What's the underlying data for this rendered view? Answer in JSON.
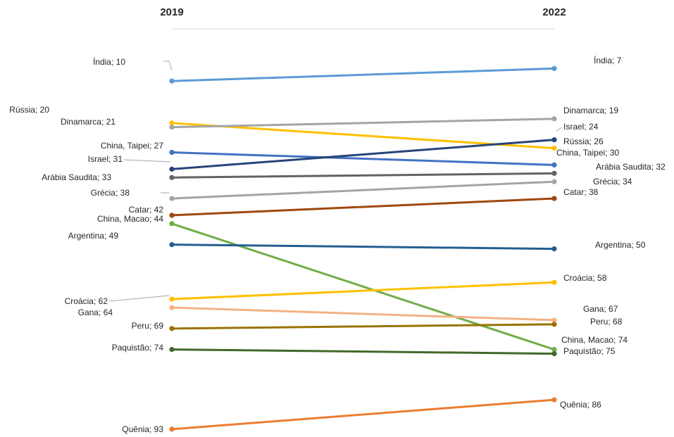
{
  "chart_data": {
    "type": "line",
    "x": [
      "2019",
      "2022"
    ],
    "series": [
      {
        "name": "Índia",
        "values": [
          10,
          7
        ],
        "color": "#5B9BD5",
        "label_left": "Índia; 10",
        "label_right": "Índia; 7"
      },
      {
        "name": "Rússia",
        "values": [
          20,
          26
        ],
        "color": "#FFC000",
        "label_left": "Rússia; 20",
        "label_right": "Rússia; 26"
      },
      {
        "name": "Dinamarca",
        "values": [
          21,
          19
        ],
        "color": "#A5A5A5",
        "label_left": "Dinamarca; 21",
        "label_right": "Dinamarca; 19"
      },
      {
        "name": "China, Taipei",
        "values": [
          27,
          30
        ],
        "color": "#4472C4",
        "label_left": "China, Taipei; 27",
        "label_right": "China, Taipei; 30"
      },
      {
        "name": "Israel",
        "values": [
          31,
          24
        ],
        "color": "#264478",
        "label_left": "Israel; 31",
        "label_right": "Israel; 24"
      },
      {
        "name": "Arábia Saudita",
        "values": [
          33,
          32
        ],
        "color": "#636363",
        "label_left": "Arábia Saudita; 33",
        "label_right": "Arábia Saudita; 32"
      },
      {
        "name": "Grécia",
        "values": [
          38,
          34
        ],
        "color": "#A5A5A5",
        "label_left": "Grécia; 38",
        "label_right": "Grécia; 34"
      },
      {
        "name": "Catar",
        "values": [
          42,
          38
        ],
        "color": "#9E480E",
        "label_left": "Catar; 42",
        "label_right": "Catar; 38"
      },
      {
        "name": "China, Macao",
        "values": [
          44,
          74
        ],
        "color": "#70AD47",
        "label_left": "China, Macao; 44",
        "label_right": "China, Macao; 74"
      },
      {
        "name": "Argentina",
        "values": [
          49,
          50
        ],
        "color": "#255E91",
        "label_left": "Argentina; 49",
        "label_right": "Argentina; 50"
      },
      {
        "name": "Croácia",
        "values": [
          62,
          58
        ],
        "color": "#FFC000",
        "label_left": "Croácia; 62",
        "label_right": "Croácia; 58"
      },
      {
        "name": "Gana",
        "values": [
          64,
          67
        ],
        "color": "#F4B183",
        "label_left": "Gana; 64",
        "label_right": "Gana; 67"
      },
      {
        "name": "Peru",
        "values": [
          69,
          68
        ],
        "color": "#997300",
        "label_left": "Peru; 69",
        "label_right": "Peru; 68"
      },
      {
        "name": "Paquistão",
        "values": [
          74,
          75
        ],
        "color": "#43682B",
        "label_left": "Paquistão; 74",
        "label_right": "Paquistão; 75"
      },
      {
        "name": "Quênia",
        "values": [
          93,
          86
        ],
        "color": "#ED7D31",
        "label_left": "Quênia; 93",
        "label_right": "Quênia; 86"
      }
    ],
    "y_reversed": true,
    "ylim": [
      7,
      93
    ],
    "grid": false,
    "legend": "none"
  }
}
